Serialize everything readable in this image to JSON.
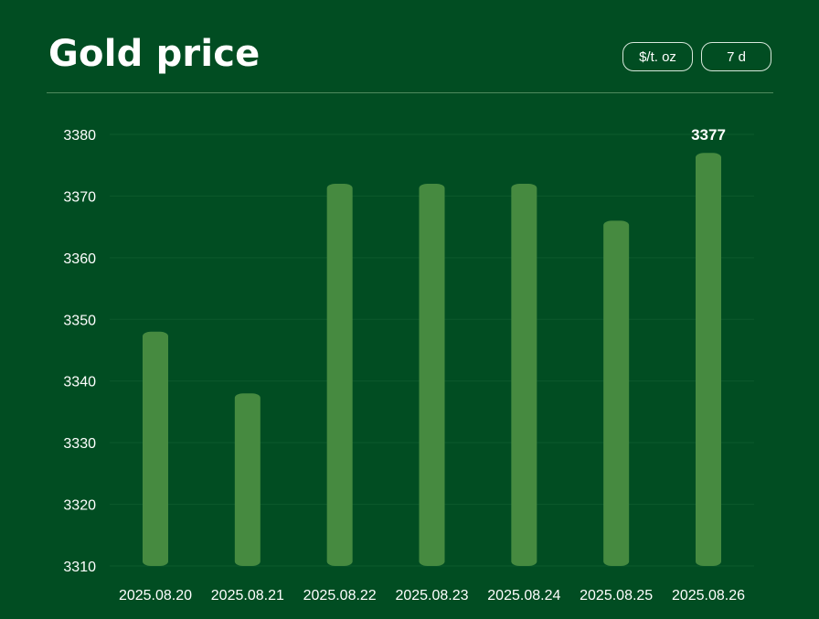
{
  "header": {
    "title": "Gold price",
    "unit_label": "$/t. oz",
    "range_label": "7 d"
  },
  "colors": {
    "background": "#014d22",
    "bar": "#468a40",
    "text": "#ffffff",
    "grid": "#0d5a2c"
  },
  "chart_data": {
    "type": "bar",
    "title": "Gold price",
    "categories": [
      "2025.08.20",
      "2025.08.21",
      "2025.08.22",
      "2025.08.23",
      "2025.08.24",
      "2025.08.25",
      "2025.08.26"
    ],
    "series": [
      {
        "values": [
          3348,
          3338,
          3372,
          3372,
          3372,
          3366,
          3377
        ]
      }
    ],
    "ylim": [
      3310,
      3380
    ],
    "yticks": [
      3310,
      3320,
      3330,
      3340,
      3350,
      3360,
      3370,
      3380
    ],
    "grid": true,
    "annotations": [
      {
        "category": "2025.08.26",
        "text": "3377"
      }
    ],
    "xlabel": "",
    "ylabel": ""
  }
}
